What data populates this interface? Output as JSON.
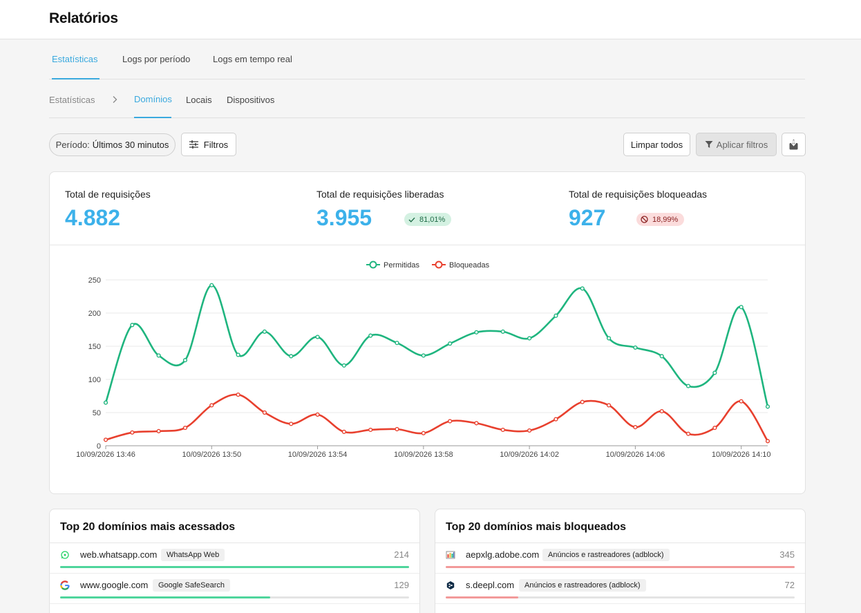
{
  "header": {
    "title": "Relatórios"
  },
  "tabs": [
    {
      "label": "Estatísticas",
      "active": true
    },
    {
      "label": "Logs por período",
      "active": false
    },
    {
      "label": "Logs em tempo real",
      "active": false
    }
  ],
  "subtabs": {
    "breadcrumb": "Estatísticas",
    "items": [
      {
        "label": "Domínios",
        "active": true
      },
      {
        "label": "Locais",
        "active": false
      },
      {
        "label": "Dispositivos",
        "active": false
      }
    ]
  },
  "toolbar": {
    "period_label": "Período:",
    "period_value": "Últimos 30 minutos",
    "filters_label": "Filtros",
    "clear_label": "Limpar todos",
    "apply_label": "Aplicar filtros",
    "export_icon": "download-icon"
  },
  "stats": {
    "total": {
      "label": "Total de requisições",
      "value": "4.882"
    },
    "allowed": {
      "label": "Total de requisições liberadas",
      "value": "3.955",
      "badge": "81,01%"
    },
    "blocked": {
      "label": "Total de requisições bloqueadas",
      "value": "927",
      "badge": "18,99%"
    }
  },
  "colors": {
    "accent": "#3aa9de",
    "allowed": "#1fb57f",
    "blocked": "#e8402e"
  },
  "chart_data": {
    "type": "line",
    "title": "",
    "legend": "top-center",
    "xlabel": "",
    "ylabel": "",
    "ylim": [
      0,
      250
    ],
    "yticks": [
      0,
      50,
      100,
      150,
      200,
      250
    ],
    "xtick_labels": [
      "10/09/2026 13:46",
      "10/09/2026 13:50",
      "10/09/2026 13:54",
      "10/09/2026 13:58",
      "10/09/2026 14:02",
      "10/09/2026 14:06",
      "10/09/2026 14:10"
    ],
    "x": [
      "13:46",
      "13:47",
      "13:48",
      "13:49",
      "13:50",
      "13:51",
      "13:52",
      "13:53",
      "13:54",
      "13:55",
      "13:56",
      "13:57",
      "13:58",
      "13:59",
      "14:00",
      "14:01",
      "14:02",
      "14:03",
      "14:04",
      "14:05",
      "14:06",
      "14:07",
      "14:08",
      "14:09",
      "14:10",
      "14:11"
    ],
    "grid": true,
    "series": [
      {
        "name": "Permitidas",
        "color": "#1fb57f",
        "values": [
          65,
          182,
          136,
          129,
          242,
          137,
          172,
          135,
          164,
          121,
          166,
          155,
          136,
          154,
          171,
          172,
          162,
          196,
          237,
          162,
          148,
          135,
          90,
          110,
          209,
          59
        ]
      },
      {
        "name": "Bloqueadas",
        "color": "#e8402e",
        "values": [
          9,
          20,
          22,
          27,
          61,
          77,
          50,
          33,
          47,
          21,
          24,
          25,
          19,
          37,
          34,
          24,
          23,
          40,
          66,
          61,
          28,
          52,
          18,
          27,
          67,
          7
        ]
      }
    ]
  },
  "top_accessed": {
    "title": "Top 20 domínios mais acessados",
    "max": 214,
    "rows": [
      {
        "icon": "whatsapp-icon",
        "domain": "web.whatsapp.com",
        "tag": "WhatsApp Web",
        "count": 214,
        "count_label": "214"
      },
      {
        "icon": "google-icon",
        "domain": "www.google.com",
        "tag": "Google SafeSearch",
        "count": 129,
        "count_label": "129"
      }
    ]
  },
  "top_blocked": {
    "title": "Top 20 domínios mais bloqueados",
    "max": 345,
    "rows": [
      {
        "icon": "adobe-icon",
        "domain": "aepxlg.adobe.com",
        "tag": "Anúncios e rastreadores (adblock)",
        "count": 345,
        "count_label": "345"
      },
      {
        "icon": "deepl-icon",
        "domain": "s.deepl.com",
        "tag": "Anúncios e rastreadores (adblock)",
        "count": 72,
        "count_label": "72"
      }
    ]
  }
}
